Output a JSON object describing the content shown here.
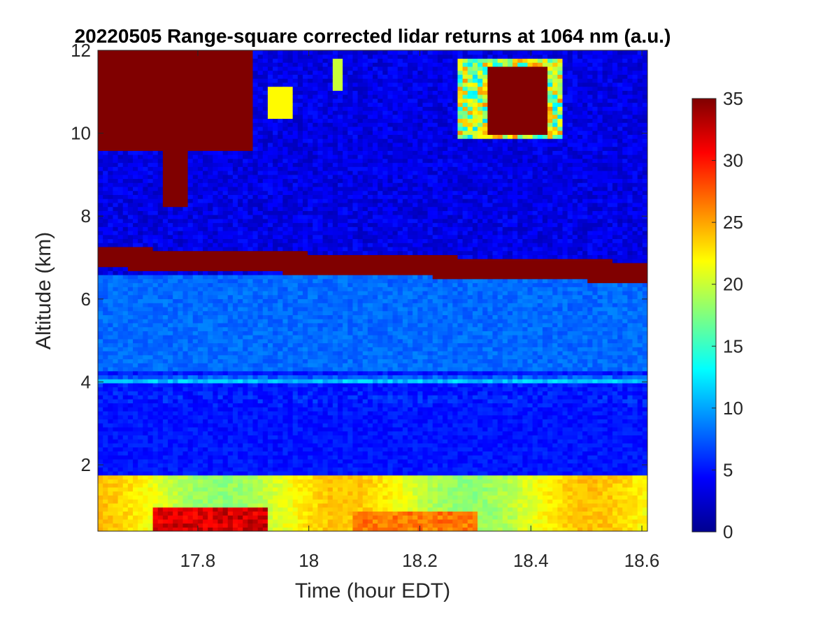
{
  "chart_data": {
    "type": "heatmap",
    "title": "20220505  Range-square corrected lidar returns at 1064 nm (a.u.)",
    "xlabel": "Time (hour EDT)",
    "ylabel": "Altitude (km)",
    "xlim": [
      17.62,
      18.61
    ],
    "ylim": [
      0.4,
      12
    ],
    "xticks": [
      17.8,
      18,
      18.2,
      18.4,
      18.6
    ],
    "xtick_labels": [
      "17.8",
      "18",
      "18.2",
      "18.4",
      "18.6"
    ],
    "yticks": [
      2,
      4,
      6,
      8,
      10,
      12
    ],
    "ytick_labels": [
      "2",
      "4",
      "6",
      "8",
      "10",
      "12"
    ],
    "colorbar": {
      "colormap": "jet",
      "clim": [
        0,
        35
      ],
      "ticks": [
        0,
        5,
        10,
        15,
        20,
        25,
        30,
        35
      ],
      "tick_labels": [
        "0",
        "5",
        "10",
        "15",
        "20",
        "25",
        "30",
        "35"
      ]
    },
    "grid": false,
    "features": [
      {
        "altitude_km": [
          0.4,
          1.7
        ],
        "time_h": [
          17.62,
          18.61
        ],
        "value": 22
      },
      {
        "altitude_km": [
          0.5,
          1.0
        ],
        "time_h": [
          17.75,
          17.95
        ],
        "value": 33
      },
      {
        "altitude_km": [
          3.95,
          4.15
        ],
        "time_h": [
          17.62,
          18.61
        ],
        "value": 13
      },
      {
        "altitude_km": [
          6.6,
          7.1
        ],
        "time_h": [
          17.62,
          18.61
        ],
        "value": 35
      },
      {
        "altitude_km": [
          9.6,
          11.9
        ],
        "time_h": [
          17.62,
          17.9
        ],
        "value": 35
      },
      {
        "altitude_km": [
          10.0,
          11.5
        ],
        "time_h": [
          18.32,
          18.43
        ],
        "value": 35
      }
    ]
  }
}
